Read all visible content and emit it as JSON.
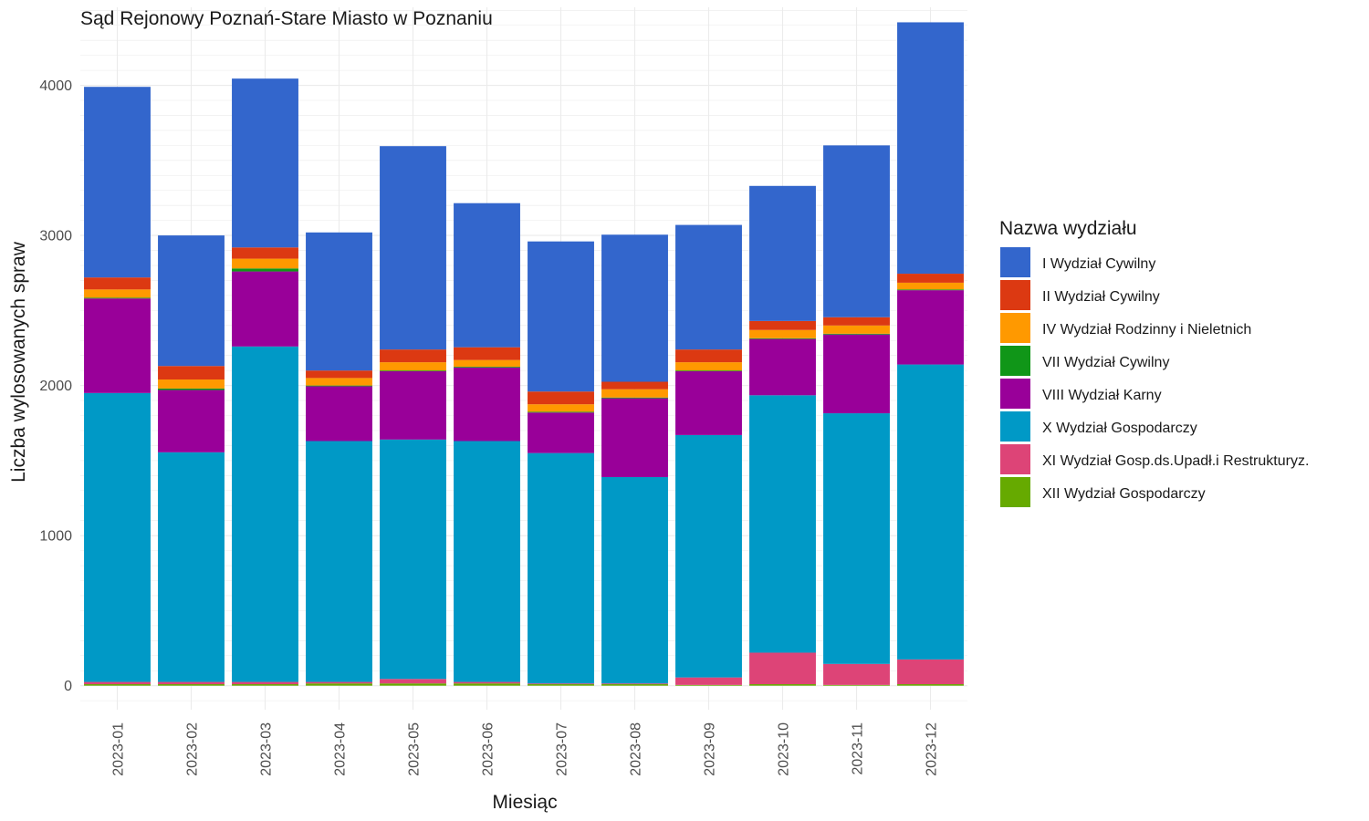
{
  "chart_data": {
    "type": "bar",
    "stacked": true,
    "title": "Sąd Rejonowy Poznań-Stare Miasto w Poznaniu",
    "xlabel": "Miesiąc",
    "ylabel": "Liczba wylosowanych spraw",
    "ylim": [
      -160,
      4520
    ],
    "yticks": [
      0,
      1000,
      2000,
      3000,
      4000
    ],
    "grid": true,
    "legend": {
      "title": "Nazwa wydziału",
      "position": "right"
    },
    "categories": [
      "2023-01",
      "2023-02",
      "2023-03",
      "2023-04",
      "2023-05",
      "2023-06",
      "2023-07",
      "2023-08",
      "2023-09",
      "2023-10",
      "2023-11",
      "2023-12"
    ],
    "series": [
      {
        "name": "XII Wydział Gospodarczy",
        "color": "#66AA00",
        "values": [
          10,
          10,
          10,
          15,
          15,
          15,
          10,
          10,
          5,
          10,
          5,
          10
        ]
      },
      {
        "name": "XI Wydział Gosp.ds.Upadł.i Restrukturyz.",
        "color": "#DD4477",
        "values": [
          15,
          15,
          15,
          10,
          30,
          10,
          5,
          5,
          50,
          210,
          140,
          165
        ]
      },
      {
        "name": "X Wydział Gospodarczy",
        "color": "#0099C6",
        "values": [
          1925,
          1530,
          2235,
          1605,
          1595,
          1605,
          1535,
          1375,
          1615,
          1715,
          1670,
          1965
        ]
      },
      {
        "name": "VIII Wydział Karny",
        "color": "#990099",
        "values": [
          630,
          415,
          500,
          365,
          455,
          490,
          270,
          525,
          425,
          375,
          525,
          495
        ]
      },
      {
        "name": "VII Wydział Cywilny",
        "color": "#109618",
        "values": [
          5,
          10,
          20,
          5,
          5,
          5,
          5,
          5,
          5,
          5,
          5,
          5
        ]
      },
      {
        "name": "IV Wydział Rodzinny i Nieletnich",
        "color": "#FF9900",
        "values": [
          55,
          60,
          65,
          50,
          55,
          45,
          50,
          55,
          55,
          55,
          55,
          45
        ]
      },
      {
        "name": "II Wydział Cywilny",
        "color": "#DC3912",
        "values": [
          80,
          90,
          75,
          50,
          85,
          85,
          85,
          50,
          85,
          60,
          55,
          60
        ]
      },
      {
        "name": "I Wydział Cywilny",
        "color": "#3366CC",
        "values": [
          1270,
          870,
          1125,
          920,
          1355,
          960,
          1000,
          980,
          830,
          900,
          1145,
          1675
        ]
      }
    ],
    "legend_order": [
      "I Wydział Cywilny",
      "II Wydział Cywilny",
      "IV Wydział Rodzinny i Nieletnich",
      "VII Wydział Cywilny",
      "VIII Wydział Karny",
      "X Wydział Gospodarczy",
      "XI Wydział Gosp.ds.Upadł.i Restrukturyz.",
      "XII Wydział Gospodarczy"
    ]
  }
}
